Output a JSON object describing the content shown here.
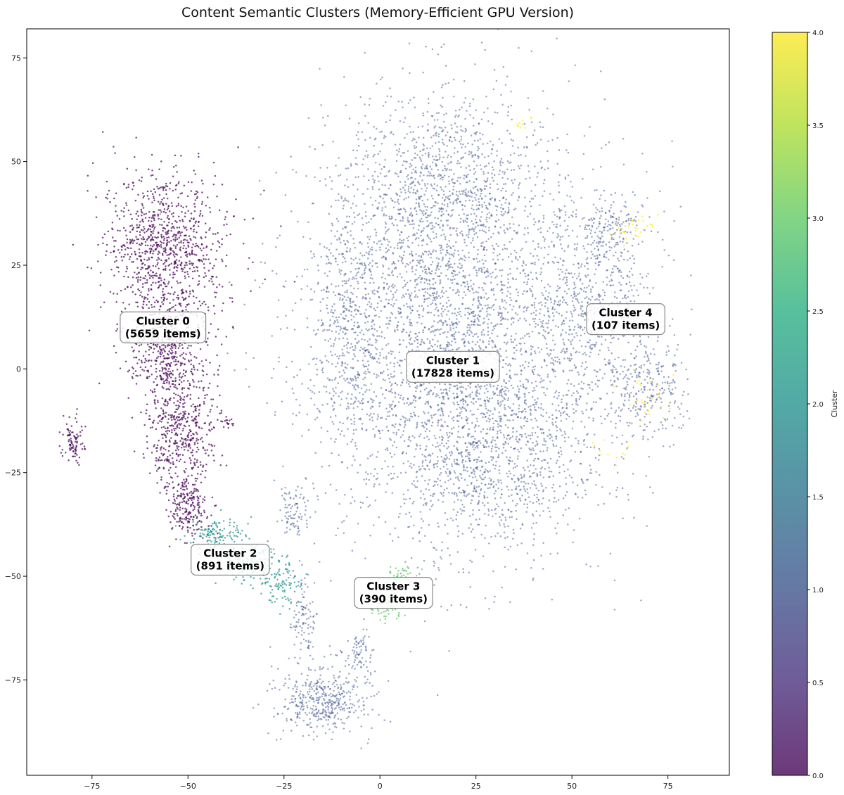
{
  "chart_data": {
    "type": "scatter",
    "title": "Content Semantic Clusters (Memory-Efficient GPU Version)",
    "xlabel": "",
    "ylabel": "",
    "xlim": [
      -92,
      91
    ],
    "ylim": [
      -98,
      82
    ],
    "xticks": [
      -75,
      -50,
      -25,
      0,
      25,
      50,
      75
    ],
    "yticks": [
      -75,
      -50,
      -25,
      0,
      25,
      50,
      75
    ],
    "xtick_labels": [
      "−75",
      "−50",
      "−25",
      "0",
      "25",
      "50",
      "75"
    ],
    "ytick_labels": [
      "−75",
      "−50",
      "−25",
      "0",
      "25",
      "50",
      "75"
    ],
    "grid": false,
    "colormap": "viridis",
    "colorbar": {
      "label": "Cluster",
      "min": 0.0,
      "max": 4.0,
      "ticks": [
        0.0,
        0.5,
        1.0,
        1.5,
        2.0,
        2.5,
        3.0,
        3.5,
        4.0
      ],
      "tick_labels": [
        "0.0",
        "0.5",
        "1.0",
        "1.5",
        "2.0",
        "2.5",
        "3.0",
        "3.5",
        "4.0"
      ]
    },
    "clusters": [
      {
        "cluster": 0,
        "count": 5659,
        "color": "#440154"
      },
      {
        "cluster": 1,
        "count": 17828,
        "color": "#3b528b"
      },
      {
        "cluster": 2,
        "count": 891,
        "color": "#21918c"
      },
      {
        "cluster": 3,
        "count": 390,
        "color": "#5ec962"
      },
      {
        "cluster": 4,
        "count": 107,
        "color": "#fde725"
      }
    ],
    "annotations": [
      {
        "line1": "Cluster 0",
        "line2": "(5659 items)",
        "x": -56.5,
        "y": 10
      },
      {
        "line1": "Cluster 1",
        "line2": "(17828 items)",
        "x": 19,
        "y": 0.5
      },
      {
        "line1": "Cluster 2",
        "line2": "(891 items)",
        "x": -39,
        "y": -46
      },
      {
        "line1": "Cluster 3",
        "line2": "(390 items)",
        "x": 3.5,
        "y": -54
      },
      {
        "line1": "Cluster 4",
        "line2": "(107 items)",
        "x": 64,
        "y": 12
      }
    ]
  }
}
